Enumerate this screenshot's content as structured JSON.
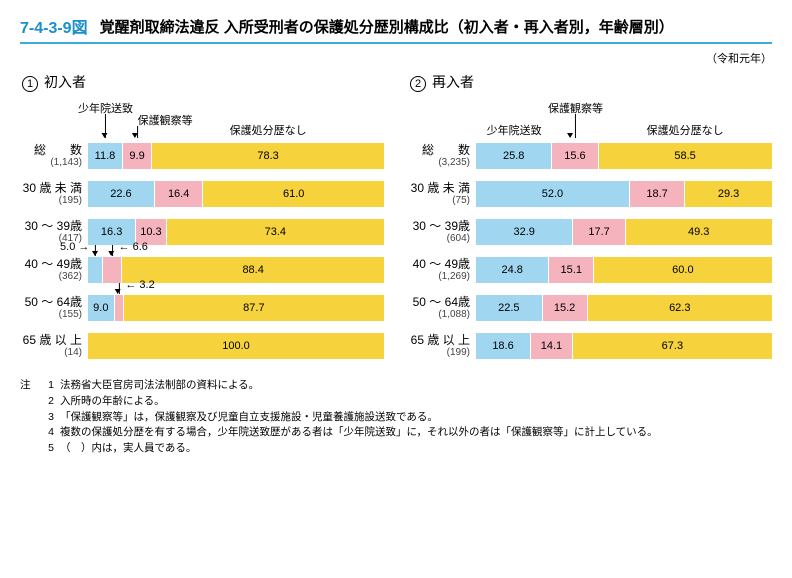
{
  "figure_number": "7-4-3-9図",
  "figure_title": "覚醒剤取締法違反 入所受刑者の保護処分歴別構成比（初入者・再入者別，年齢層別）",
  "year_note": "（令和元年）",
  "colors": {
    "shonenin": "#a1d6f0",
    "hogo": "#f4b3bd",
    "none": "#f6d23c",
    "text": "#000000",
    "border": "#ffffff"
  },
  "segment_labels": {
    "shonenin": "少年院送致",
    "hogo": "保護観察等",
    "none": "保護処分歴なし"
  },
  "panels": [
    {
      "id": "1",
      "title": "初入者",
      "legend_style": "left-arrows",
      "rows": [
        {
          "label": "総　　数",
          "count": "(1,143)",
          "seg": [
            11.8,
            9.9,
            78.3
          ],
          "callouts": []
        },
        {
          "label": "30 歳 未 満",
          "count": "(195)",
          "seg": [
            22.6,
            16.4,
            61.0
          ],
          "callouts": []
        },
        {
          "label": "30 ～ 39歳",
          "count": "(417)",
          "seg": [
            16.3,
            10.3,
            73.4
          ],
          "callouts": []
        },
        {
          "label": "40 ～ 49歳",
          "count": "(362)",
          "seg": [
            5.0,
            6.6,
            88.4
          ],
          "callouts": [
            0,
            1
          ]
        },
        {
          "label": "50 ～ 64歳",
          "count": "(155)",
          "seg": [
            9.0,
            3.2,
            87.7
          ],
          "callouts": [
            1
          ]
        },
        {
          "label": "65 歳 以 上",
          "count": "(14)",
          "seg": [
            0,
            0,
            100.0
          ],
          "callouts": []
        }
      ]
    },
    {
      "id": "2",
      "title": "再入者",
      "legend_style": "center-arrow",
      "rows": [
        {
          "label": "総　　数",
          "count": "(3,235)",
          "seg": [
            25.8,
            15.6,
            58.5
          ],
          "callouts": []
        },
        {
          "label": "30 歳 未 満",
          "count": "(75)",
          "seg": [
            52.0,
            18.7,
            29.3
          ],
          "callouts": []
        },
        {
          "label": "30 ～ 39歳",
          "count": "(604)",
          "seg": [
            32.9,
            17.7,
            49.3
          ],
          "callouts": []
        },
        {
          "label": "40 ～ 49歳",
          "count": "(1,269)",
          "seg": [
            24.8,
            15.1,
            60.0
          ],
          "callouts": []
        },
        {
          "label": "50 ～ 64歳",
          "count": "(1,088)",
          "seg": [
            22.5,
            15.2,
            62.3
          ],
          "callouts": []
        },
        {
          "label": "65 歳 以 上",
          "count": "(199)",
          "seg": [
            18.6,
            14.1,
            67.3
          ],
          "callouts": []
        }
      ]
    }
  ],
  "notes_header": "注",
  "notes": [
    "法務省大臣官房司法法制部の資料による。",
    "入所時の年齢による。",
    "「保護観察等」は，保護観察及び児童自立支援施設・児童養護施設送致である。",
    "複数の保護処分歴を有する場合，少年院送致歴がある者は「少年院送致」に，それ以外の者は「保護観察等」に計上している。",
    "（　）内は，実人員である。"
  ]
}
